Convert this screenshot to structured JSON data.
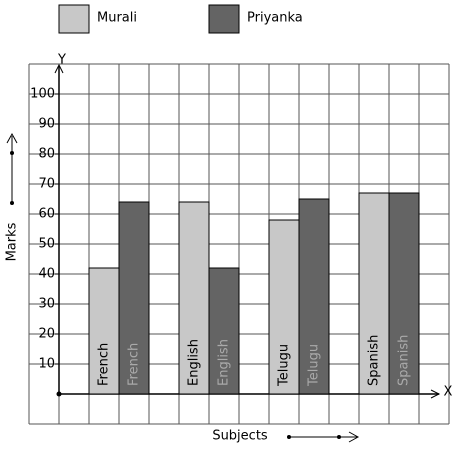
{
  "chart_data": {
    "type": "bar",
    "x_label": "Subjects",
    "y_label": "Marks",
    "x_axis_name": "X",
    "y_axis_name": "Y",
    "categories": [
      "French",
      "English",
      "Telugu",
      "Spanish"
    ],
    "series": [
      {
        "name": "Murali",
        "color": "#c8c8c8",
        "values": [
          42,
          64,
          58,
          67
        ]
      },
      {
        "name": "Priyanka",
        "color": "#646464",
        "values": [
          64,
          42,
          65,
          67
        ]
      }
    ],
    "ylim": [
      -10,
      110
    ],
    "yticks": [
      10,
      20,
      30,
      40,
      50,
      60,
      70,
      80,
      90,
      100
    ],
    "grid": true
  }
}
